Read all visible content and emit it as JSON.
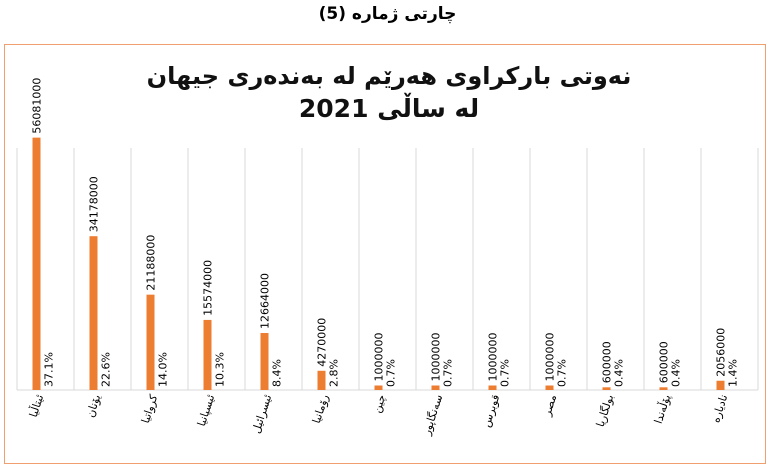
{
  "page": {
    "caption": "چارتی ژمارە (5)"
  },
  "chart_data": {
    "type": "bar",
    "title_lines": [
      "نەوتی بارکراوی هەرێم لە بەندەری جیهان",
      "لە ساڵی 2021"
    ],
    "xlabel": "",
    "ylabel": "",
    "categories": [
      "ئیتاڵیا",
      "یۆنان",
      "کرواتیا",
      "ئیسپانیا",
      "ئیسرائیل",
      "رۆمانیا",
      "چین",
      "سەنگاپور",
      "قوبرس",
      "مصر",
      "بولگاریا",
      "پۆڵەندا",
      "ناديارە"
    ],
    "values": [
      56081000,
      34178000,
      21188000,
      15574000,
      12664000,
      4270000,
      1000000,
      1000000,
      1000000,
      1000000,
      600000,
      600000,
      2056000
    ],
    "value_labels": [
      "56081000",
      "34178000",
      "21188000",
      "15574000",
      "12664000",
      "4270000",
      "1000000",
      "1000000",
      "1000000",
      "1000000",
      "600000",
      "600000",
      "2056000"
    ],
    "percent_labels": [
      "37.1%",
      "22.6%",
      "14.0%",
      "10.3%",
      "8.4%",
      "2.8%",
      "0.7%",
      "0.7%",
      "0.7%",
      "0.7%",
      "0.4%",
      "0.4%",
      "1.4%"
    ],
    "ylim": [
      0,
      60000000
    ],
    "grid": "vertical separators",
    "colors": {
      "bar": "#ed7d31",
      "grid": "#d9d9d9",
      "frame": "#f0a070"
    }
  }
}
